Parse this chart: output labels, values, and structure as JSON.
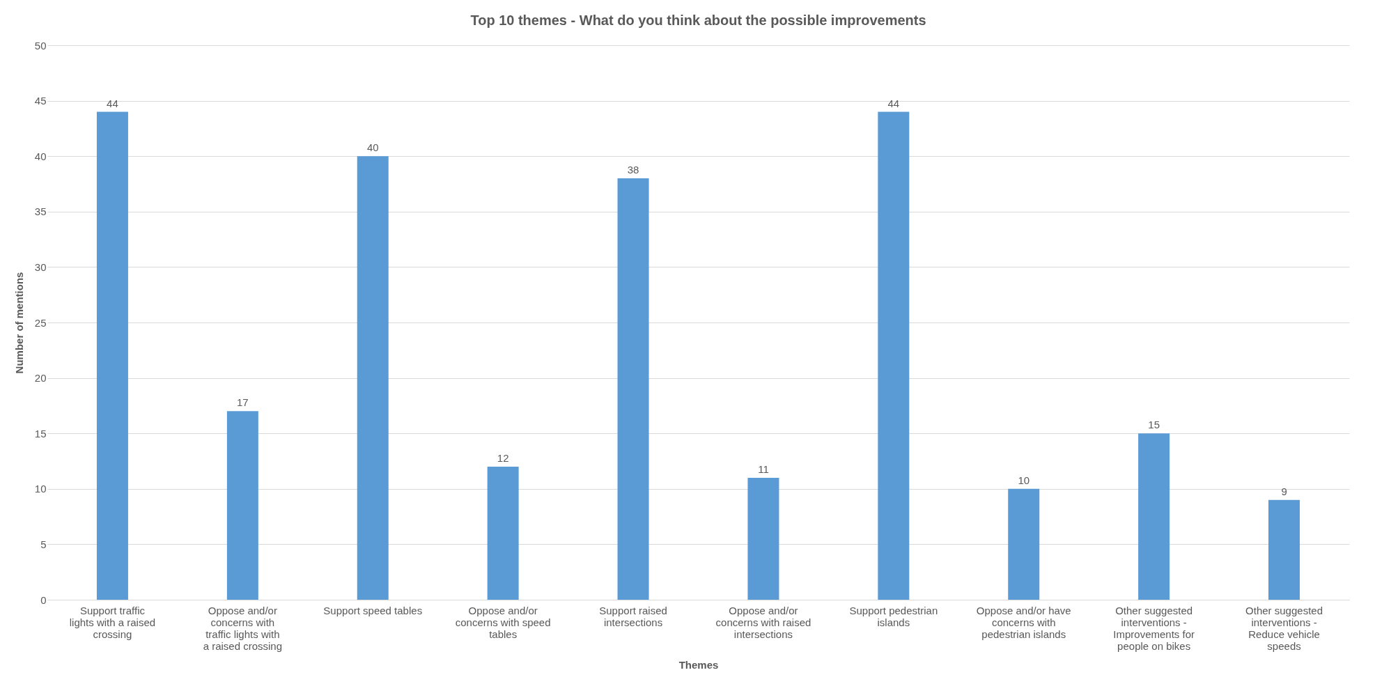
{
  "chart_data": {
    "type": "bar",
    "title": "Top 10 themes - What do you think about the possible improvements",
    "xlabel": "Themes",
    "ylabel": "Number of mentions",
    "categories": [
      "Support traffic lights with a raised crossing",
      "Oppose and/or concerns with traffic lights with a raised crossing",
      "Support speed tables",
      "Oppose and/or concerns with speed tables",
      "Support raised intersections",
      "Oppose and/or concerns with raised intersections",
      "Support pedestrian islands",
      "Oppose and/or have concerns with pedestrian islands",
      "Other suggested interventions - Improvements for people on bikes",
      "Other suggested interventions - Reduce vehicle speeds"
    ],
    "values": [
      44,
      17,
      40,
      12,
      38,
      11,
      44,
      10,
      15,
      9
    ],
    "color": "#5b9bd5",
    "ylim": [
      0,
      50
    ],
    "yticks": [
      0,
      5,
      10,
      15,
      20,
      25,
      30,
      35,
      40,
      45,
      50
    ],
    "grid": "y",
    "data_labels": true
  }
}
